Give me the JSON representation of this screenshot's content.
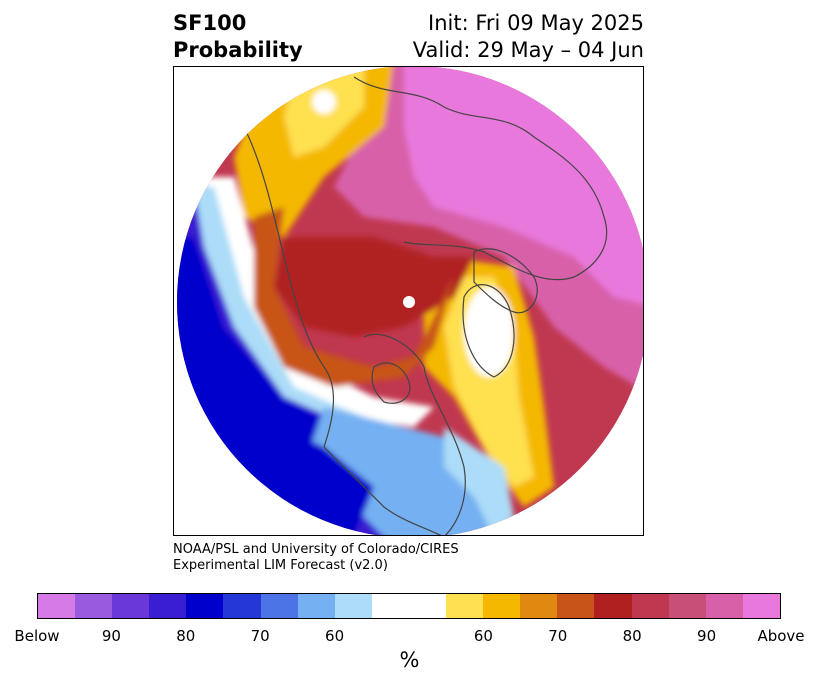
{
  "title": {
    "left_line1": "SF100",
    "left_line2": "Probability",
    "right_line1": "Init: Fri 09 May 2025",
    "right_line2": "Valid: 29 May – 04 Jun"
  },
  "credit": {
    "line1": "NOAA/PSL and University of Colorado/CIRES",
    "line2": "Experimental LIM Forecast (v2.0)"
  },
  "colorbar": {
    "unit": "%",
    "colors": [
      "#d67ae8",
      "#9a5ae0",
      "#6a38d8",
      "#3a1ed2",
      "#0000cc",
      "#2438d8",
      "#4c74e6",
      "#74b0f2",
      "#acdcf8",
      "#ffffff",
      "#ffffff",
      "#ffe050",
      "#f4b800",
      "#e08810",
      "#c85418",
      "#b02020",
      "#c03850",
      "#c85078",
      "#d860a8",
      "#e878dc"
    ],
    "tick_labels": [
      "Below",
      "90",
      "80",
      "70",
      "60",
      "60",
      "70",
      "80",
      "90",
      "Above"
    ]
  },
  "map": {
    "projection": "north-polar-stereographic",
    "colors": {
      "above_max": "#e878dc",
      "above_90": "#d860a8",
      "above_85": "#c85078",
      "above_80": "#c03850",
      "above_75": "#b02020",
      "above_70": "#c85418",
      "above_65": "#e08810",
      "above_60": "#f4b800",
      "above_55": "#ffe050",
      "neutral": "#ffffff",
      "below_55": "#acdcf8",
      "below_60": "#74b0f2",
      "below_65": "#4c74e6",
      "below_70": "#2438d8",
      "below_75": "#0000cc",
      "below_80": "#3a1ed2",
      "below_85": "#6a38d8",
      "below_max": "#9a5ae0",
      "coastline": "#444444"
    }
  }
}
